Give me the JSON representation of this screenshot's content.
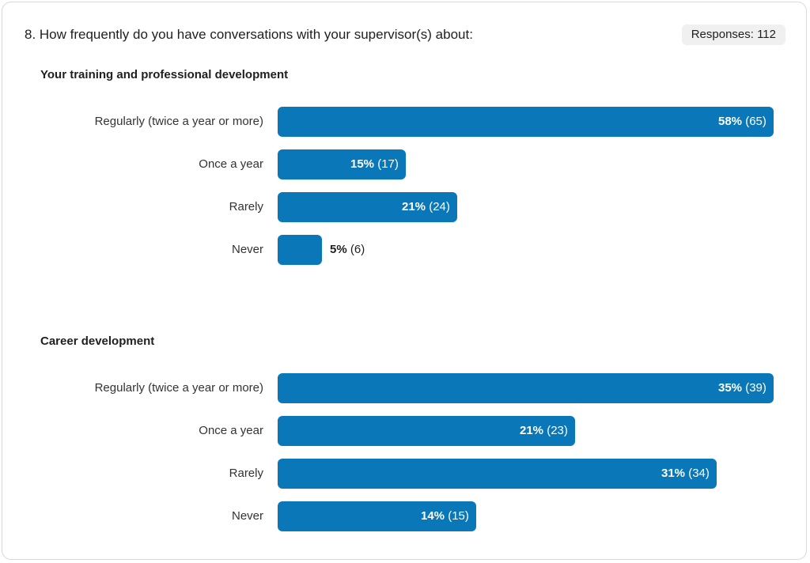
{
  "question": "8. How frequently do you have conversations with your supervisor(s) about:",
  "responses_label": "Responses: 112",
  "colors": {
    "bar": "#0a77b8"
  },
  "chart_data": [
    {
      "type": "bar",
      "orientation": "horizontal",
      "title": "Your training and professional development",
      "categories": [
        "Regularly (twice a year or more)",
        "Once a year",
        "Rarely",
        "Never"
      ],
      "values": [
        58,
        15,
        21,
        5
      ],
      "percent_labels": [
        "58%",
        "15%",
        "21%",
        "5%"
      ],
      "count_labels": [
        "(65)",
        "(17)",
        "(24)",
        "(6)"
      ],
      "xlim": [
        0,
        58
      ]
    },
    {
      "type": "bar",
      "orientation": "horizontal",
      "title": "Career development",
      "categories": [
        "Regularly (twice a year or more)",
        "Once a year",
        "Rarely",
        "Never"
      ],
      "values": [
        35,
        21,
        31,
        14
      ],
      "percent_labels": [
        "35%",
        "21%",
        "31%",
        "14%"
      ],
      "count_labels": [
        "(39)",
        "(23)",
        "(34)",
        "(15)"
      ],
      "xlim": [
        0,
        35
      ]
    }
  ]
}
